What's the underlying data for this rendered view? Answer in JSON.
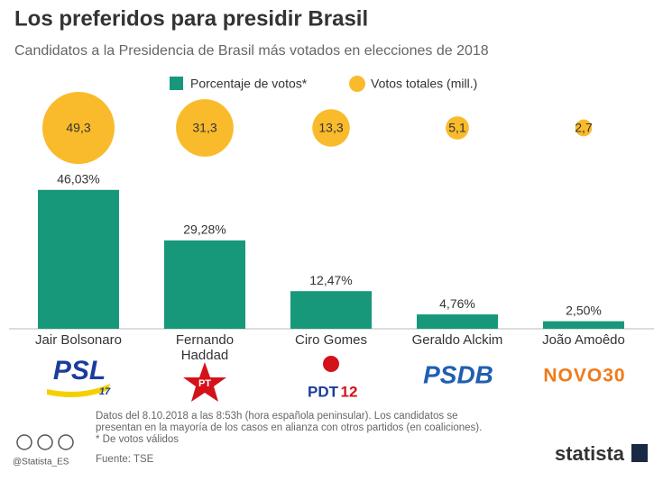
{
  "chart_data": {
    "type": "bar-bubble",
    "title": "Los preferidos para presidir Brasil",
    "subtitle": "Candidatos a la Presidencia de Brasil más votados en elecciones de 2018",
    "categories": [
      "Jair Bolsonaro",
      "Fernando Haddad",
      "Ciro Gomes",
      "Geraldo Alckim",
      "João Amoêdo"
    ],
    "series": [
      {
        "name": "Porcentaje de votos*",
        "color": "#17987a",
        "values": [
          46.03,
          29.28,
          12.47,
          4.76,
          2.5
        ],
        "value_labels": [
          "46,03%",
          "29,28%",
          "12,47%",
          "4,76%",
          "2,50%"
        ]
      },
      {
        "name": "Votos totales (mill.)",
        "color": "#f9bb2b",
        "values": [
          49.3,
          31.3,
          13.3,
          5.1,
          2.7
        ],
        "value_labels": [
          "49,3",
          "31,3",
          "13,3",
          "5,1",
          "2,7"
        ]
      }
    ],
    "logos": [
      "PSL",
      "17",
      "PT",
      "PDT",
      "12",
      "PSDB",
      "NOVO30"
    ]
  },
  "footer": {
    "note": "Datos del 8.10.2018 a las 8:53h (hora española peninsular). Los candidatos se presentan en la mayoría de los casos en alianza con otros partidos (en coaliciones).",
    "footnote": "* De votos válidos",
    "source": "Fuente: TSE",
    "handle": "@Statista_ES",
    "brand": "statista"
  }
}
